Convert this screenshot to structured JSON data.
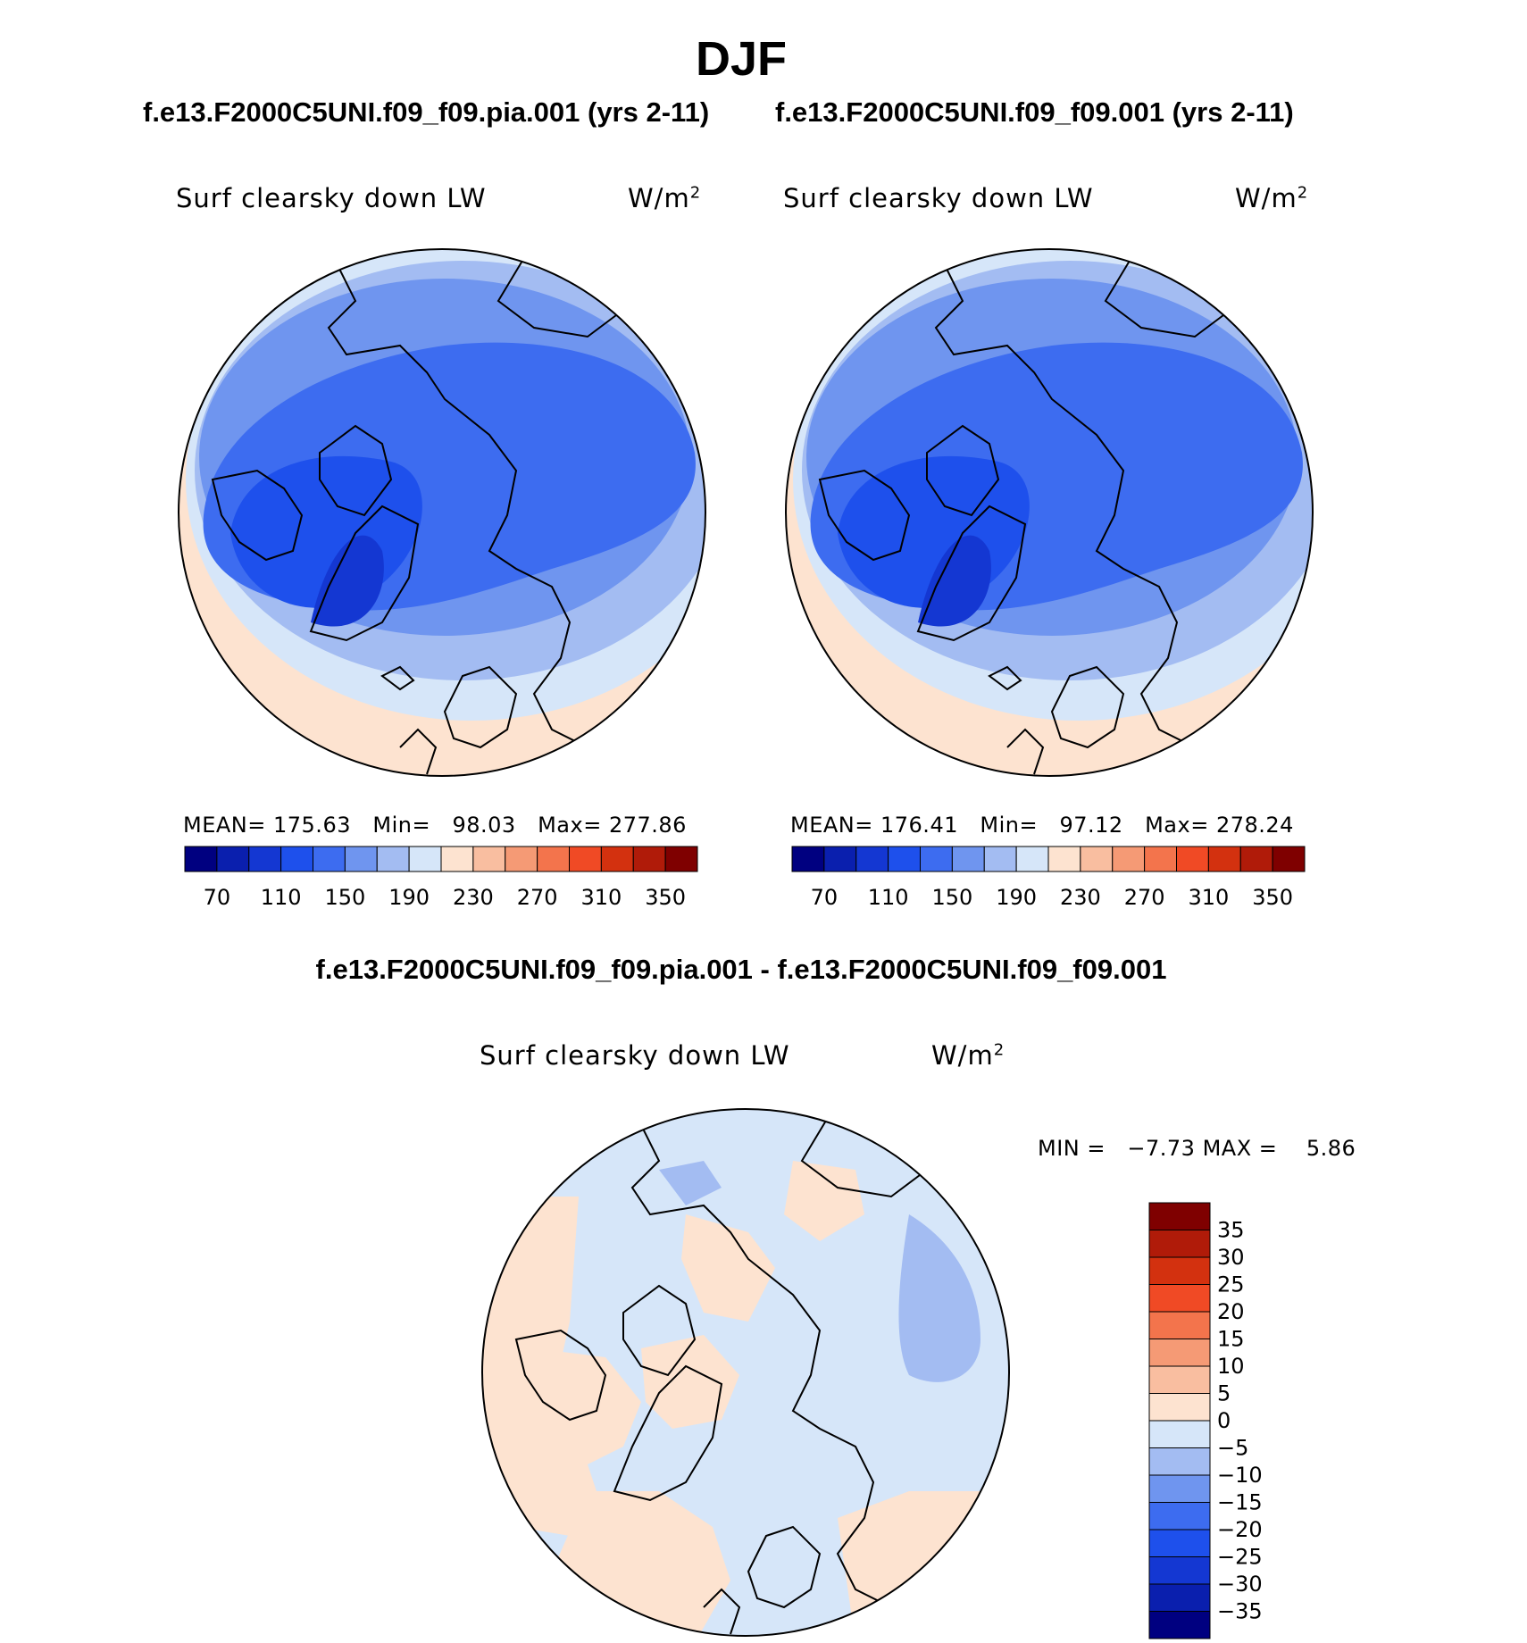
{
  "page_title": "DJF",
  "chart_data": [
    {
      "type": "heatmap",
      "title": "f.e13.F2000C5UNI.f09_f09.pia.001 (yrs 2-11)",
      "variable_label": "Surf clearsky down LW",
      "units": "W/m",
      "units_exponent": "2",
      "projection": "north polar stereographic",
      "stats": {
        "mean_label": "MEAN=",
        "mean": "175.63",
        "min_label": "Min=",
        "min": "98.03",
        "max_label": "Max=",
        "max": "277.86"
      },
      "colorbar": {
        "orientation": "horizontal",
        "levels": [
          70,
          90,
          110,
          130,
          150,
          170,
          190,
          210,
          230,
          250,
          270,
          290,
          310,
          330,
          350
        ],
        "tick_labels": [
          "70",
          "110",
          "150",
          "190",
          "230",
          "270",
          "310",
          "350"
        ],
        "colors": [
          "#000080",
          "#0a1fae",
          "#1437d2",
          "#1e50ec",
          "#3d6cf0",
          "#6f95ef",
          "#a3bcf2",
          "#d6e6f9",
          "#fde3d0",
          "#f9bea0",
          "#f59a75",
          "#f3744c",
          "#f04a25",
          "#d3310f",
          "#b01b09",
          "#7f0000"
        ]
      }
    },
    {
      "type": "heatmap",
      "title": "f.e13.F2000C5UNI.f09_f09.001 (yrs 2-11)",
      "variable_label": "Surf clearsky down LW",
      "units": "W/m",
      "units_exponent": "2",
      "projection": "north polar stereographic",
      "stats": {
        "mean_label": "MEAN=",
        "mean": "176.41",
        "min_label": "Min=",
        "min": "97.12",
        "max_label": "Max=",
        "max": "278.24"
      },
      "colorbar": {
        "orientation": "horizontal",
        "levels": [
          70,
          90,
          110,
          130,
          150,
          170,
          190,
          210,
          230,
          250,
          270,
          290,
          310,
          330,
          350
        ],
        "tick_labels": [
          "70",
          "110",
          "150",
          "190",
          "230",
          "270",
          "310",
          "350"
        ],
        "colors": [
          "#000080",
          "#0a1fae",
          "#1437d2",
          "#1e50ec",
          "#3d6cf0",
          "#6f95ef",
          "#a3bcf2",
          "#d6e6f9",
          "#fde3d0",
          "#f9bea0",
          "#f59a75",
          "#f3744c",
          "#f04a25",
          "#d3310f",
          "#b01b09",
          "#7f0000"
        ]
      }
    },
    {
      "type": "heatmap",
      "title": "f.e13.F2000C5UNI.f09_f09.pia.001 - f.e13.F2000C5UNI.f09_f09.001",
      "variable_label": "Surf clearsky down LW",
      "units": "W/m",
      "units_exponent": "2",
      "projection": "north polar stereographic",
      "stats": {
        "min_label": "MIN =",
        "min": "−7.73",
        "max_label": "MAX =",
        "max": "5.86"
      },
      "colorbar": {
        "orientation": "vertical",
        "levels": [
          35,
          30,
          25,
          20,
          15,
          10,
          5,
          0,
          -5,
          -10,
          -15,
          -20,
          -25,
          -30,
          -35
        ],
        "tick_labels": [
          "35",
          "30",
          "25",
          "20",
          "15",
          "10",
          "5",
          "0",
          "−5",
          "−10",
          "−15",
          "−20",
          "−25",
          "−30",
          "−35"
        ],
        "colors": [
          "#7f0000",
          "#b01b09",
          "#d3310f",
          "#f04a25",
          "#f3744c",
          "#f59a75",
          "#f9bea0",
          "#fde3d0",
          "#d6e6f9",
          "#a3bcf2",
          "#6f95ef",
          "#3d6cf0",
          "#1e50ec",
          "#1437d2",
          "#0a1fae",
          "#000080"
        ]
      }
    }
  ]
}
